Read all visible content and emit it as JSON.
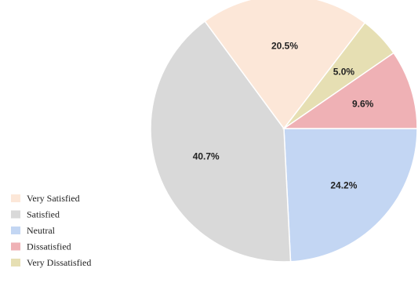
{
  "chart_data": {
    "type": "pie",
    "legend_position": "bottom-left",
    "slices": [
      {
        "name": "Neutral",
        "value": 24.2,
        "label": "24.2%",
        "color": "#c3d6f3"
      },
      {
        "name": "Satisfied",
        "value": 40.7,
        "label": "40.7%",
        "color": "#d9d9d9"
      },
      {
        "name": "Very Satisfied",
        "value": 20.5,
        "label": "20.5%",
        "color": "#fce7d8"
      },
      {
        "name": "Very Dissatisfied",
        "value": 5.0,
        "label": "5.0%",
        "color": "#e6dfb3"
      },
      {
        "name": "Dissatisfied",
        "value": 9.6,
        "label": "9.6%",
        "color": "#efb1b5"
      }
    ],
    "legend": [
      {
        "name": "Very Satisfied",
        "color": "#fce7d8"
      },
      {
        "name": "Satisfied",
        "color": "#d9d9d9"
      },
      {
        "name": "Neutral",
        "color": "#c3d6f3"
      },
      {
        "name": "Dissatisfied",
        "color": "#efb1b5"
      },
      {
        "name": "Very Dissatisfied",
        "color": "#e6dfb3"
      }
    ]
  }
}
